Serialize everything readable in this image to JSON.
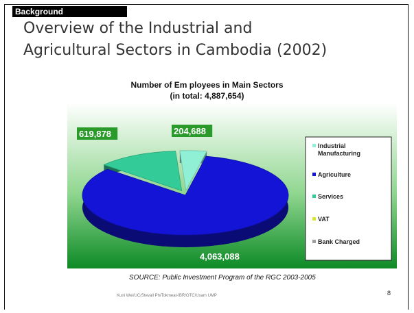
{
  "header": {
    "section_tag": "Background",
    "title_line1": "Overview of the Industrial and",
    "title_line2": "Agricultural Sectors in Cambodia (2002)"
  },
  "chart_data": {
    "type": "pie",
    "title": "Number of Em ployees in Main Sectors",
    "subtitle": "(in total: 4,887,654)",
    "series": [
      {
        "name": "Industrial Manufacturing",
        "value": 204688,
        "label": "204,688",
        "color": "#8ff0d6"
      },
      {
        "name": "Agriculture",
        "value": 4063088,
        "label": "4,063,088",
        "color": "#1414d6"
      },
      {
        "name": "Services",
        "value": 619878,
        "label": "619,878",
        "color": "#33cc99"
      },
      {
        "name": "VAT",
        "value": 0,
        "label": "",
        "color": "#d8e832"
      },
      {
        "name": "Bank Charged",
        "value": 0,
        "label": "",
        "color": "#9aa0a0"
      }
    ],
    "legend": {
      "placement": "right",
      "items": [
        "Industrial Manufacturing",
        "Agriculture",
        "Services",
        "VAT",
        "Bank Charged"
      ]
    }
  },
  "source": "SOURCE: Public Investment Program of the RGC 2003-2005",
  "footer": "Kuni Wei/UC/Stevall Ph/Tokmeat-IBR/OTC/Usam UMP",
  "page_number": "8"
}
